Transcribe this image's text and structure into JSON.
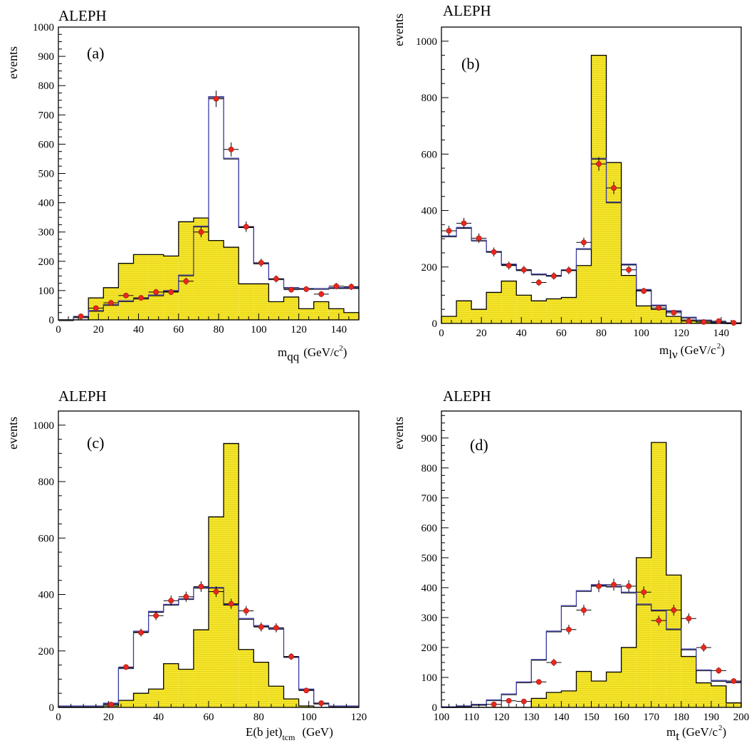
{
  "experiment_label": "ALEPH",
  "y_axis_label": "events",
  "colors": {
    "fill": "#f4e62a",
    "fill_line": "#e6d21e",
    "outline": "#000000",
    "mc_line": "#3a3aa6",
    "marker": "#e8281e"
  },
  "chart_data": [
    {
      "type": "histogram",
      "panel_label": "(a)",
      "xlabel_main": "m",
      "xlabel_sub": "qq",
      "xlabel_unit": "(GeV/c",
      "xlabel_sup": "2",
      "xlabel_close": ")",
      "xlim": [
        0,
        150
      ],
      "ylim": [
        0,
        1000
      ],
      "xticks": [
        0,
        20,
        40,
        60,
        80,
        100,
        120,
        140
      ],
      "yticks": [
        0,
        100,
        200,
        300,
        400,
        500,
        600,
        700,
        800,
        900,
        1000
      ],
      "bin_width": 7.5,
      "bin_start": 0,
      "filled_values": [
        0,
        0,
        75,
        110,
        193,
        223,
        223,
        218,
        335,
        348,
        271,
        248,
        123,
        123,
        62,
        78,
        38,
        62,
        38,
        25
      ],
      "mc_values": [
        0,
        10,
        32,
        52,
        65,
        74,
        85,
        100,
        153,
        320,
        762,
        552,
        318,
        194,
        140,
        110,
        107,
        107,
        110,
        110
      ],
      "data_points": {
        "x": [
          11.25,
          18.75,
          26.25,
          33.75,
          41.25,
          48.75,
          56.25,
          63.75,
          71.25,
          78.75,
          86.25,
          93.75,
          101.25,
          108.75,
          116.25,
          123.75,
          131.25,
          138.75,
          146.25
        ],
        "y": [
          12,
          40,
          58,
          83,
          75,
          95,
          95,
          132,
          300,
          755,
          582,
          318,
          195,
          140,
          103,
          105,
          88,
          115,
          113
        ],
        "err": [
          4,
          6,
          8,
          9,
          9,
          10,
          10,
          12,
          18,
          28,
          24,
          18,
          14,
          12,
          10,
          10,
          10,
          11,
          11
        ]
      }
    },
    {
      "type": "histogram",
      "panel_label": "(b)",
      "xlabel_main": "m",
      "xlabel_sub": "lν",
      "xlabel_unit": "(GeV/c",
      "xlabel_sup": "2",
      "xlabel_close": ")",
      "xlim": [
        0,
        150
      ],
      "ylim": [
        0,
        1050
      ],
      "xticks": [
        0,
        20,
        40,
        60,
        80,
        100,
        120,
        140
      ],
      "yticks": [
        0,
        200,
        400,
        600,
        800,
        1000
      ],
      "bin_width": 7.5,
      "bin_start": 0,
      "filled_values": [
        25,
        80,
        50,
        110,
        150,
        100,
        80,
        87,
        92,
        205,
        950,
        570,
        170,
        62,
        50,
        25,
        12,
        5,
        2,
        0
      ],
      "mc_values": [
        310,
        340,
        295,
        255,
        210,
        190,
        175,
        170,
        190,
        265,
        585,
        430,
        210,
        120,
        65,
        45,
        22,
        12,
        5,
        2
      ],
      "data_points": {
        "x": [
          3.75,
          11.25,
          18.75,
          26.25,
          33.75,
          41.25,
          48.75,
          56.25,
          63.75,
          71.25,
          78.75,
          86.25,
          93.75,
          101.25,
          108.75,
          116.25,
          123.75,
          131.25,
          138.75,
          146.25
        ],
        "y": [
          328,
          355,
          302,
          253,
          205,
          190,
          145,
          168,
          188,
          287,
          565,
          480,
          190,
          115,
          55,
          38,
          8,
          5,
          8,
          2
        ],
        "err": [
          18,
          19,
          17,
          16,
          14,
          14,
          12,
          13,
          14,
          17,
          24,
          22,
          14,
          11,
          8,
          6,
          3,
          2,
          3,
          1
        ]
      }
    },
    {
      "type": "histogram",
      "panel_label": "(c)",
      "xlabel_main": "E(b jet)",
      "xlabel_sub": "tcm",
      "xlabel_unit": "(GeV)",
      "xlabel_sup": "",
      "xlabel_close": "",
      "xlim": [
        0,
        120
      ],
      "ylim": [
        0,
        1050
      ],
      "xticks": [
        0,
        20,
        40,
        60,
        80,
        100,
        120
      ],
      "yticks": [
        0,
        200,
        400,
        600,
        800,
        1000
      ],
      "bin_width": 6,
      "bin_start": 0,
      "filled_values": [
        0,
        0,
        0,
        5,
        25,
        50,
        65,
        155,
        135,
        275,
        675,
        935,
        205,
        160,
        75,
        30,
        5,
        0,
        0,
        0
      ],
      "mc_values": [
        5,
        5,
        5,
        15,
        140,
        270,
        340,
        365,
        385,
        425,
        425,
        365,
        315,
        290,
        280,
        180,
        65,
        15,
        5,
        5
      ],
      "data_points": {
        "x": [
          21,
          27,
          33,
          39,
          45,
          51,
          57,
          63,
          69,
          75,
          81,
          87,
          93,
          99,
          105
        ],
        "y": [
          10,
          143,
          265,
          325,
          378,
          392,
          428,
          410,
          367,
          342,
          285,
          282,
          180,
          60,
          15
        ],
        "err": [
          3,
          10,
          14,
          16,
          18,
          18,
          19,
          19,
          18,
          17,
          16,
          16,
          12,
          7,
          3
        ]
      }
    },
    {
      "type": "histogram",
      "panel_label": "(d)",
      "xlabel_main": "m",
      "xlabel_sub": "t",
      "xlabel_unit": "(GeV/c",
      "xlabel_sup": "2",
      "xlabel_close": ")",
      "xlim": [
        100,
        200
      ],
      "ylim": [
        0,
        990
      ],
      "xticks": [
        100,
        110,
        120,
        130,
        140,
        150,
        160,
        170,
        180,
        190,
        200
      ],
      "yticks": [
        0,
        100,
        200,
        300,
        400,
        500,
        600,
        700,
        800,
        900
      ],
      "bin_width": 5,
      "bin_start": 100,
      "filled_values": [
        0,
        0,
        0,
        0,
        0,
        0,
        30,
        50,
        55,
        120,
        88,
        118,
        200,
        500,
        885,
        442,
        170,
        82,
        72,
        15
      ],
      "mc_values": [
        2,
        5,
        10,
        25,
        45,
        85,
        160,
        255,
        340,
        390,
        410,
        405,
        385,
        345,
        325,
        262,
        195,
        125,
        90,
        85
      ],
      "data_points": {
        "x": [
          117.5,
          122.5,
          127.5,
          132.5,
          137.5,
          142.5,
          147.5,
          152.5,
          157.5,
          162.5,
          167.5,
          172.5,
          177.5,
          182.5,
          187.5,
          192.5,
          197.5
        ],
        "y": [
          10,
          22,
          20,
          85,
          150,
          260,
          325,
          405,
          410,
          405,
          385,
          290,
          325,
          297,
          200,
          123,
          88
        ],
        "err": [
          3,
          5,
          5,
          9,
          12,
          16,
          18,
          20,
          20,
          20,
          19,
          17,
          18,
          17,
          14,
          11,
          9
        ]
      }
    }
  ]
}
